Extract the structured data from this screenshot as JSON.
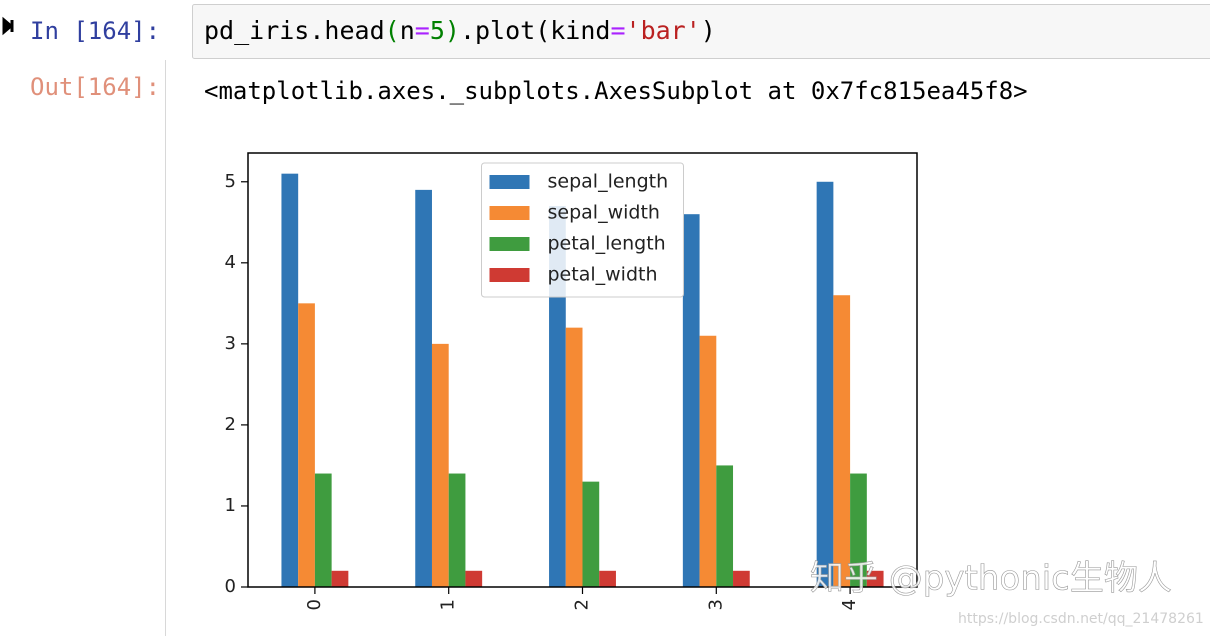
{
  "input_prompt": "In [164]:",
  "code_tokens": [
    {
      "text": "pd_iris.head",
      "color": "#000000"
    },
    {
      "text": "(",
      "color": "#008000"
    },
    {
      "text": "n",
      "color": "#000000"
    },
    {
      "text": "=",
      "color": "#aa22ff"
    },
    {
      "text": "5",
      "color": "#008000"
    },
    {
      "text": ")",
      "color": "#008000"
    },
    {
      "text": ".plot(kind",
      "color": "#000000"
    },
    {
      "text": "=",
      "color": "#aa22ff"
    },
    {
      "text": "'bar'",
      "color": "#ba2121"
    },
    {
      "text": ")",
      "color": "#000000"
    }
  ],
  "output_prompt": "Out[164]:",
  "output_text": "<matplotlib.axes._subplots.AxesSubplot at 0x7fc815ea45f8>",
  "chart_data": {
    "type": "bar",
    "categories": [
      "0",
      "1",
      "2",
      "3",
      "4"
    ],
    "series": [
      {
        "name": "sepal_length",
        "color": "#2f76b5",
        "values": [
          5.1,
          4.9,
          4.7,
          4.6,
          5.0
        ]
      },
      {
        "name": "sepal_width",
        "color": "#f58a34",
        "values": [
          3.5,
          3.0,
          3.2,
          3.1,
          3.6
        ]
      },
      {
        "name": "petal_length",
        "color": "#3f9c3f",
        "values": [
          1.4,
          1.4,
          1.3,
          1.5,
          1.4
        ]
      },
      {
        "name": "petal_width",
        "color": "#cf3a33",
        "values": [
          0.2,
          0.2,
          0.2,
          0.2,
          0.2
        ]
      }
    ],
    "ylim": [
      0,
      5.355
    ],
    "yticks": [
      0,
      1,
      2,
      3,
      4,
      5
    ],
    "legend": "upper center",
    "grid": false
  },
  "watermark": "知乎 @pythonic生物人",
  "source_url": "https://blog.csdn.net/qq_21478261"
}
